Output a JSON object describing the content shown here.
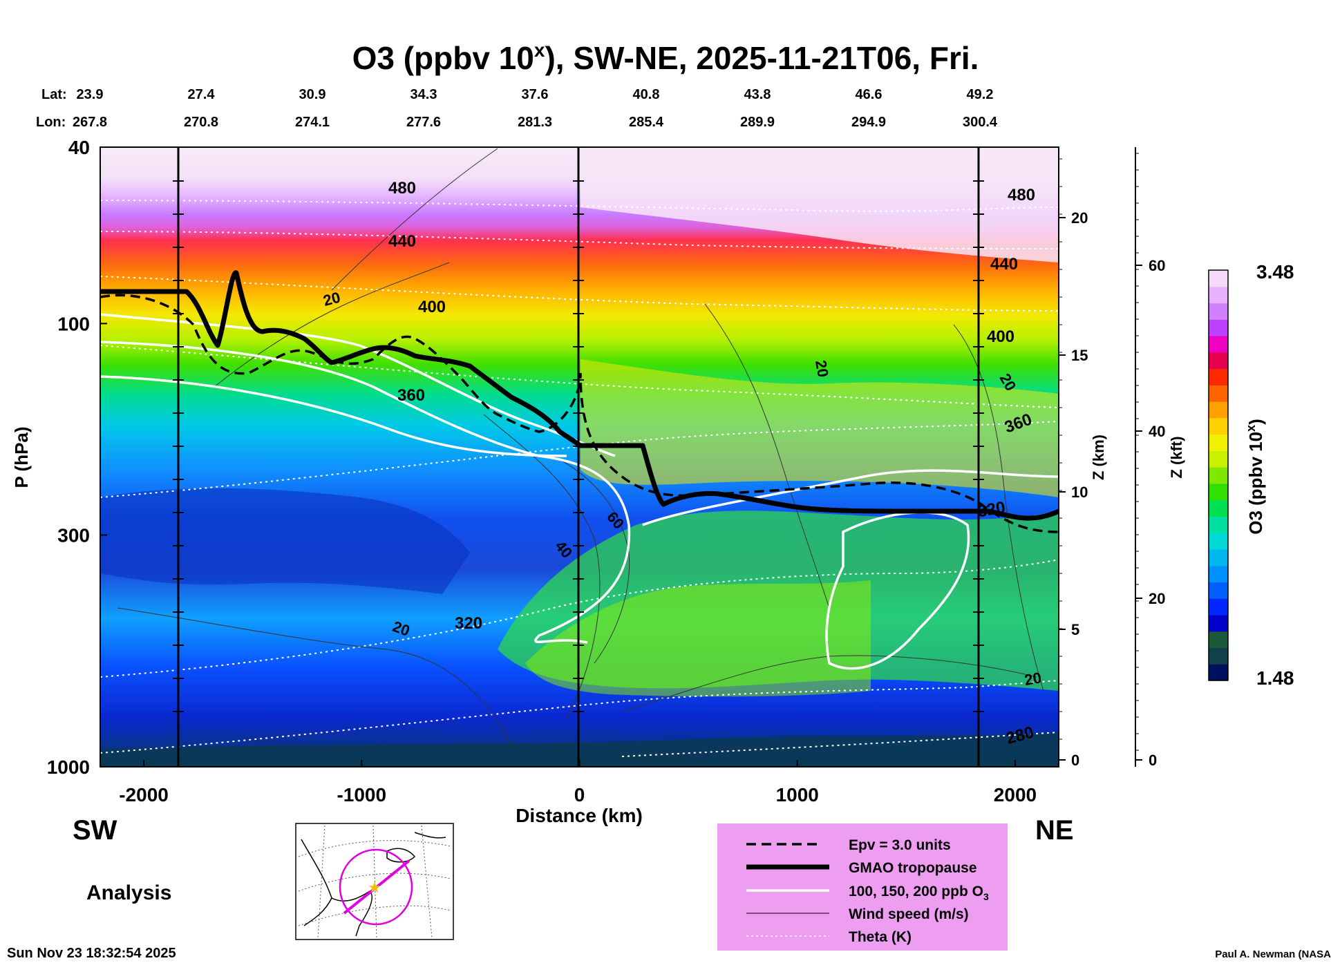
{
  "chart_data": {
    "type": "cross-section",
    "title": {
      "prefix": "O3 (ppbv 10",
      "sup": "x",
      "suffix": "), SW-NE, 2025-11-21T06, Fri."
    },
    "lat_label": "Lat:",
    "lon_label": "Lon:",
    "lat_values": [
      "23.9",
      "27.4",
      "30.9",
      "34.3",
      "37.6",
      "40.8",
      "43.8",
      "46.6",
      "49.2"
    ],
    "lon_values": [
      "267.8",
      "270.8",
      "274.1",
      "277.6",
      "281.3",
      "285.4",
      "289.9",
      "294.9",
      "300.4"
    ],
    "xlabel": "Distance (km)",
    "ylabel": "P (hPa)",
    "xlim": [
      -2200,
      2200
    ],
    "ylim": [
      1000,
      40
    ],
    "x_ticks": [
      -2000,
      -1000,
      0,
      1000,
      2000
    ],
    "x_tick_labels": [
      "-2000",
      "-1000",
      "0",
      "1000",
      "2000"
    ],
    "p_ticks": [
      40,
      100,
      300,
      1000
    ],
    "p_tick_labels": [
      "40",
      "100",
      "300",
      "1000"
    ],
    "z_km_label": "Z (km)",
    "z_km_ticks": [
      "20",
      "15",
      "10",
      "5",
      "0"
    ],
    "z_kft_label": "Z (kft)",
    "z_kft_ticks": [
      "60",
      "40",
      "20",
      "0"
    ],
    "colorbar": {
      "label_prefix": "O3 (ppbv 10",
      "label_sup": "x",
      "label_suffix": ")",
      "max_label": "3.48",
      "min_label": "1.48",
      "colors": [
        "#001060",
        "#10404a",
        "#1a5a3a",
        "#0000c8",
        "#0028ff",
        "#0060ff",
        "#0090ff",
        "#00b8f0",
        "#00d8d8",
        "#00e0a0",
        "#00e050",
        "#30e000",
        "#80e800",
        "#c8f000",
        "#f0f000",
        "#ffd000",
        "#ffa000",
        "#ff6400",
        "#ff2800",
        "#e80050",
        "#f000c0",
        "#c040ff",
        "#d080ff",
        "#e8b0ff",
        "#f6dcf8"
      ]
    },
    "theta_labels": [
      "280",
      "320",
      "320",
      "360",
      "360",
      "400",
      "400",
      "440",
      "440",
      "480",
      "480"
    ],
    "wind_labels": [
      "20",
      "20",
      "20",
      "20",
      "20",
      "40",
      "60"
    ],
    "direction_left": "SW",
    "direction_right": "NE",
    "analysis_label": "Analysis",
    "legend": [
      {
        "label": "Epv = 3.0 units",
        "style": "dashed"
      },
      {
        "label": "GMAO tropopause",
        "style": "thick"
      },
      {
        "label": "100, 150, 200 ppb O",
        "sub": "3",
        "style": "white"
      },
      {
        "label": "Wind speed (m/s)",
        "style": "thin"
      },
      {
        "label": "Theta (K)",
        "style": "dotted"
      }
    ],
    "timestamp": "Sun Nov 23 18:32:54 2025",
    "credit": "Paul A. Newman (NASA"
  }
}
